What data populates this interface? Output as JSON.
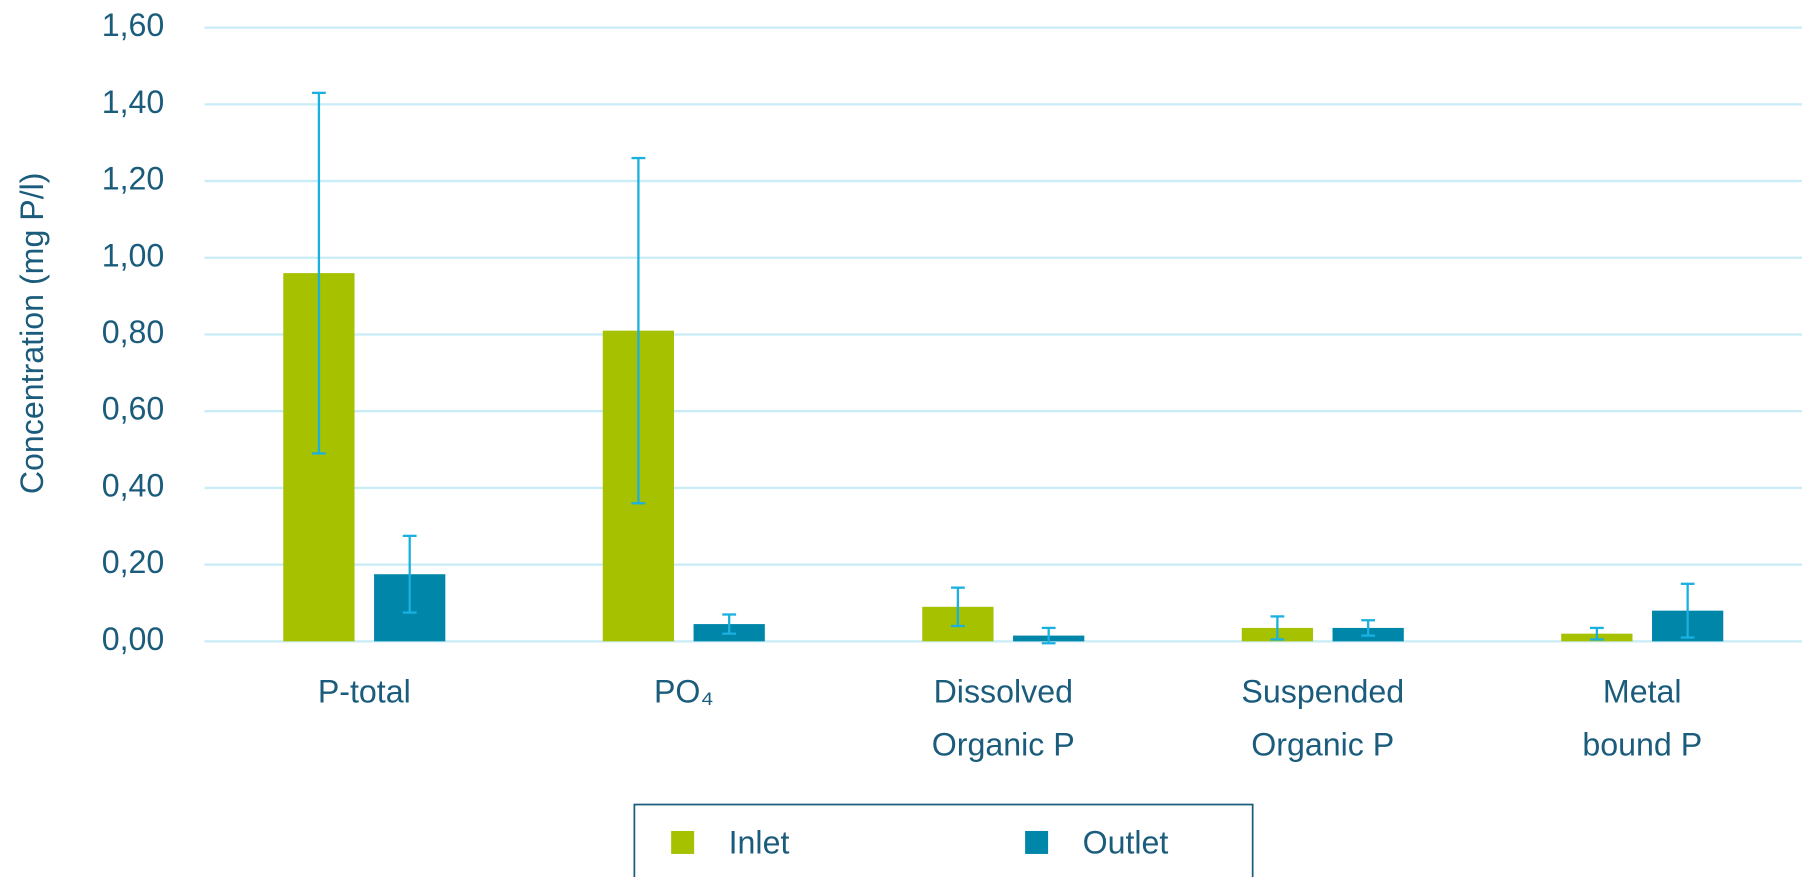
{
  "chart_data": {
    "type": "bar",
    "y_label": "Concentration (mg P/l)",
    "categories": [
      [
        "P-total"
      ],
      [
        "PO₄"
      ],
      [
        "Dissolved",
        "Organic P"
      ],
      [
        "Suspended",
        "Organic P"
      ],
      [
        "Metal",
        "bound P"
      ]
    ],
    "series": [
      {
        "name": "Inlet",
        "color": "#a5c100",
        "values": [
          0.96,
          0.81,
          0.09,
          0.035,
          0.02
        ],
        "errors": [
          0.47,
          0.45,
          0.05,
          0.03,
          0.015
        ]
      },
      {
        "name": "Outlet",
        "color": "#0086a8",
        "values": [
          0.175,
          0.045,
          0.015,
          0.035,
          0.08
        ],
        "errors": [
          0.1,
          0.025,
          0.02,
          0.02,
          0.07
        ]
      }
    ],
    "error_color": "#1ab0e0",
    "ylim": [
      0,
      1.6
    ],
    "yticks": [
      {
        "value": 0,
        "label": "0,00"
      },
      {
        "value": 0.2,
        "label": "0,20"
      },
      {
        "value": 0.4,
        "label": "0,40"
      },
      {
        "value": 0.6,
        "label": "0,60"
      },
      {
        "value": 0.8,
        "label": "0,80"
      },
      {
        "value": 1.0,
        "label": "1,00"
      },
      {
        "value": 1.2,
        "label": "1,20"
      },
      {
        "value": 1.4,
        "label": "1,40"
      },
      {
        "value": 1.6,
        "label": "1,60"
      }
    ],
    "grid": true,
    "legend": "bottom"
  }
}
